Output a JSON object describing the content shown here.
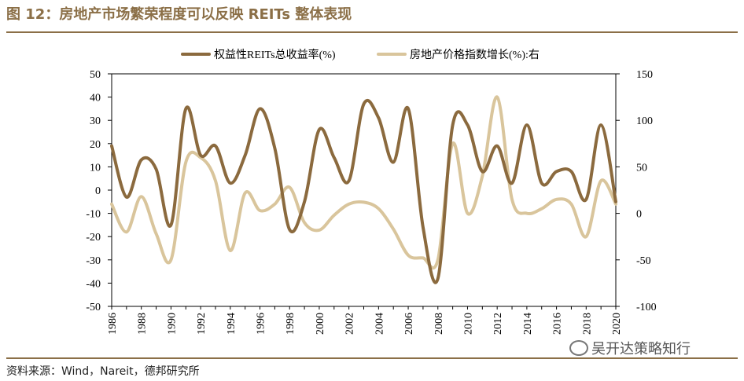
{
  "title": "图 12：房地产市场繁荣程度可以反映 REITs 整体表现",
  "source": "资料来源：Wind，Nareit，德邦研究所",
  "watermark": "吴开达策略知行",
  "chart_data": {
    "type": "line",
    "legend_position": "top",
    "grid": false,
    "x": [
      1986,
      1987,
      1988,
      1989,
      1990,
      1991,
      1992,
      1993,
      1994,
      1995,
      1996,
      1997,
      1998,
      1999,
      2000,
      2001,
      2002,
      2003,
      2004,
      2005,
      2006,
      2007,
      2008,
      2009,
      2010,
      2011,
      2012,
      2013,
      2014,
      2015,
      2016,
      2017,
      2018,
      2019,
      2020
    ],
    "xticks": [
      "1986",
      "1988",
      "1990",
      "1992",
      "1994",
      "1996",
      "1998",
      "2000",
      "2002",
      "2004",
      "2006",
      "2008",
      "2010",
      "2012",
      "2014",
      "2016",
      "2018",
      "2020"
    ],
    "xlim": [
      1986,
      2020
    ],
    "y_left": {
      "lim": [
        -50,
        50
      ],
      "ticks": [
        "-50",
        "-40",
        "-30",
        "-20",
        "-10",
        "0",
        "10",
        "20",
        "30",
        "40",
        "50"
      ]
    },
    "y_right": {
      "lim": [
        -100,
        150
      ],
      "ticks": [
        "-100",
        "-50",
        "0",
        "50",
        "100",
        "150"
      ]
    },
    "series": [
      {
        "name": "权益性REITs总收益率(%)",
        "axis": "left",
        "color": "#8B6A3E",
        "values": [
          19,
          -3,
          13,
          9,
          -15,
          35,
          15,
          19,
          3,
          15,
          35,
          18,
          -17,
          -5,
          26,
          14,
          4,
          37,
          31,
          12,
          35,
          -16,
          -38,
          28,
          28,
          8,
          19,
          3,
          28,
          3,
          8,
          8,
          -4,
          28,
          -5
        ]
      },
      {
        "name": "房地产价格指数增长(%):右",
        "axis": "right",
        "color": "#D9C59C",
        "values": [
          10,
          -20,
          18,
          -22,
          -50,
          55,
          60,
          35,
          -40,
          22,
          3,
          10,
          28,
          -10,
          -18,
          -2,
          10,
          12,
          5,
          -17,
          -45,
          -48,
          -50,
          75,
          0,
          40,
          125,
          15,
          0,
          5,
          15,
          10,
          -25,
          35,
          10
        ]
      }
    ]
  }
}
